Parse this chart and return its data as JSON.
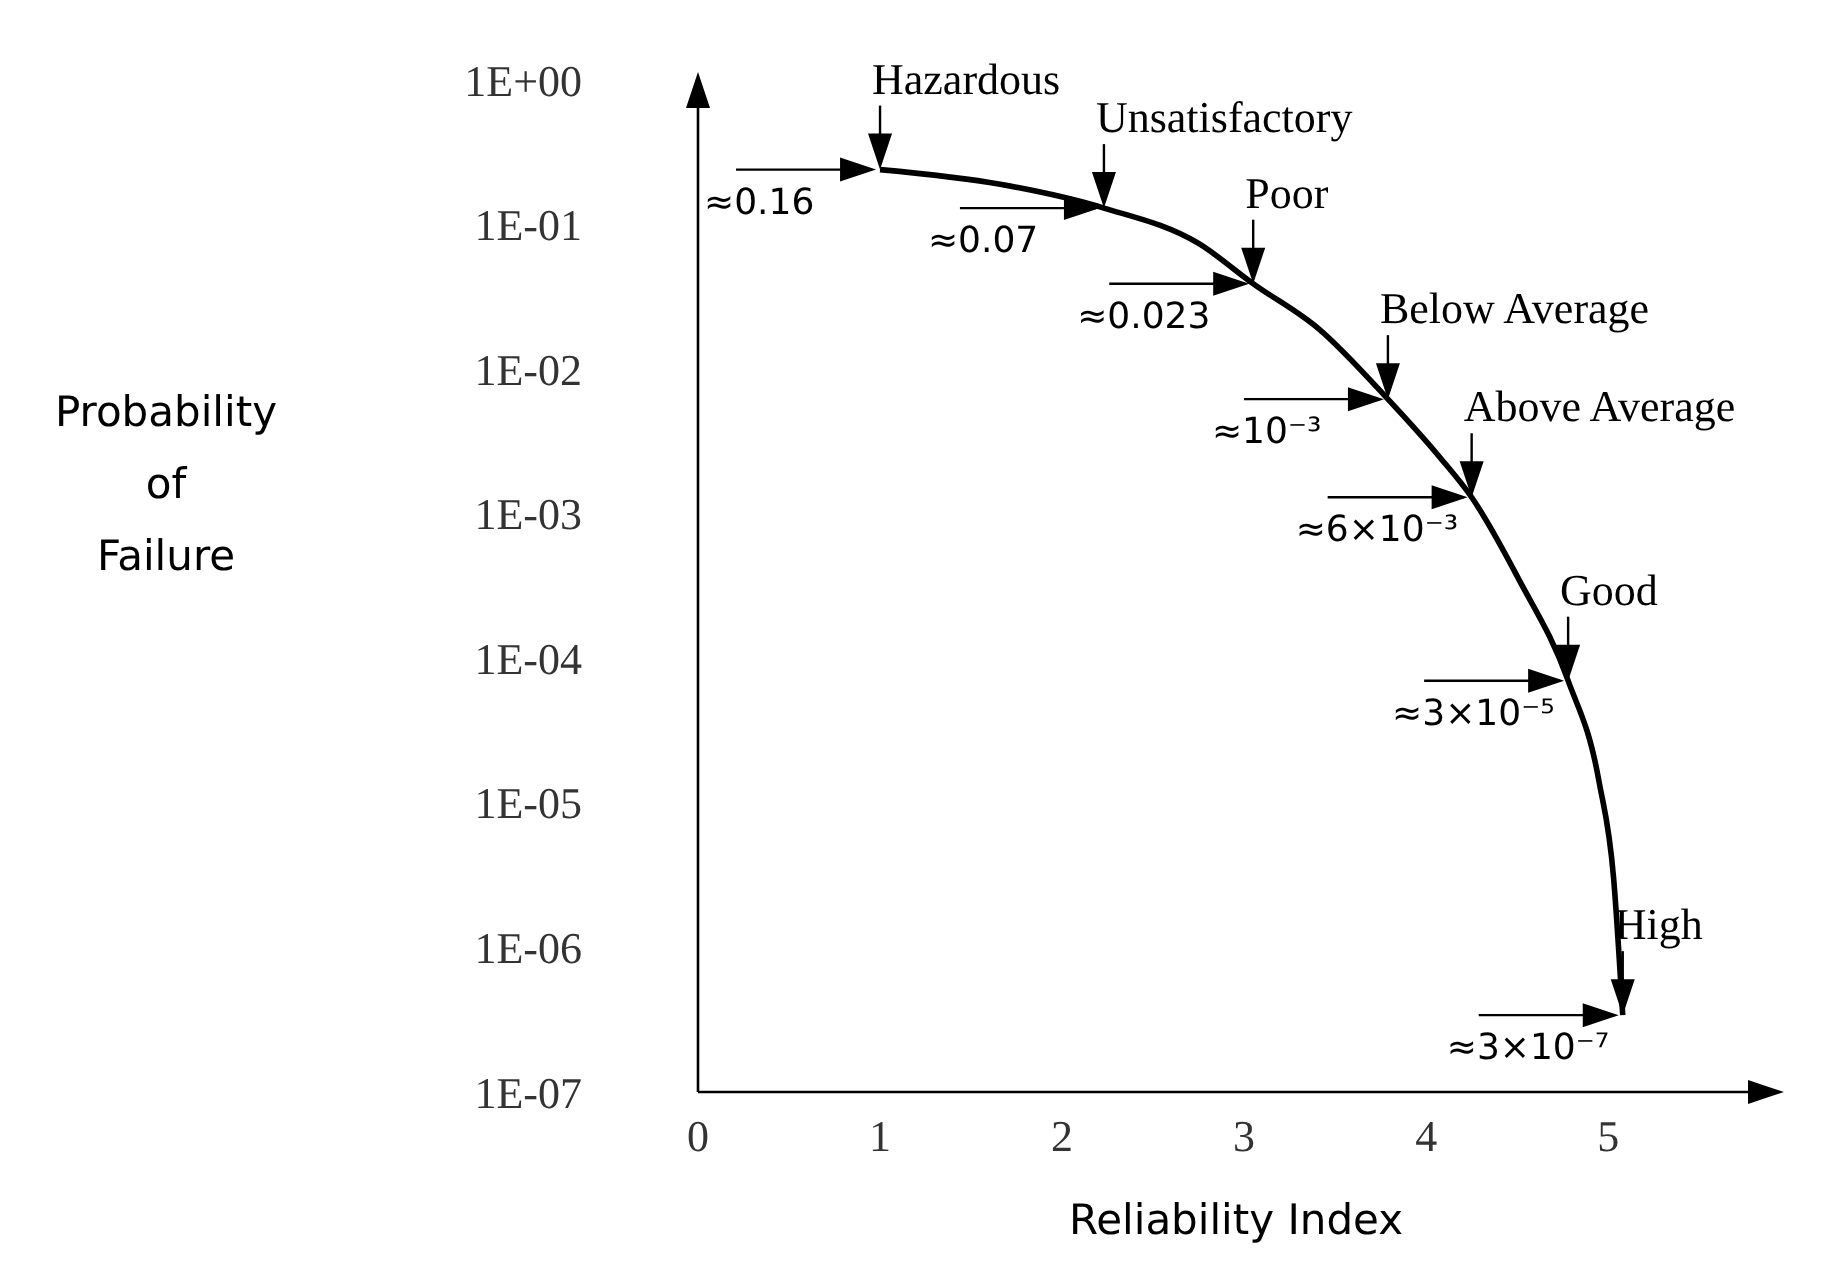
{
  "chart_data": {
    "type": "line",
    "xlabel": "Reliability Index",
    "ylabel": "Probability\nof\nFailure",
    "log": "y",
    "marker": "none",
    "xlim": [
      0,
      5.9
    ],
    "xticks": [
      0,
      1,
      2,
      3,
      4,
      5
    ],
    "ylim": [
      1e-07,
      1
    ],
    "yticks": [
      {
        "value": 1,
        "label": "1E+00"
      },
      {
        "value": 0.1,
        "label": "1E-01"
      },
      {
        "value": 0.01,
        "label": "1E-02"
      },
      {
        "value": 0.001,
        "label": "1E-03"
      },
      {
        "value": 0.0001,
        "label": "1E-04"
      },
      {
        "value": 1e-05,
        "label": "1E-05"
      },
      {
        "value": 1e-06,
        "label": "1E-06"
      },
      {
        "value": 1e-07,
        "label": "1E-07"
      }
    ],
    "series": [
      {
        "color": "#000000",
        "x": [
          1.0,
          1.66,
          2.23,
          2.75,
          3.05,
          3.41,
          3.79,
          4.07,
          4.25,
          4.51,
          4.78,
          4.95,
          5.03,
          5.08
        ],
        "values": [
          0.24,
          0.19,
          0.13,
          0.074,
          0.039,
          0.019,
          0.0062,
          0.0025,
          0.0013,
          0.00035,
          7e-05,
          1.4e-05,
          3e-06,
          3.4e-07
        ]
      }
    ],
    "annotations": [
      {
        "text": "Hazardous",
        "x": 1.0,
        "y": 0.24
      },
      {
        "text": "≈0.16",
        "x": 1.0,
        "y": 0.24
      },
      {
        "text": "Unsatisfactory",
        "x": 2.23,
        "y": 0.13
      },
      {
        "text": "≈0.07",
        "x": 2.23,
        "y": 0.13
      },
      {
        "text": "Poor",
        "x": 3.05,
        "y": 0.039
      },
      {
        "text": "≈0.023",
        "x": 3.05,
        "y": 0.039
      },
      {
        "text": "Below Average",
        "x": 3.79,
        "y": 0.0062
      },
      {
        "text": "≈10⁻³",
        "x": 3.79,
        "y": 0.0062
      },
      {
        "text": "Above Average",
        "x": 4.25,
        "y": 0.0013
      },
      {
        "text": "≈6×10⁻³",
        "x": 4.25,
        "y": 0.0013
      },
      {
        "text": "Good",
        "x": 4.78,
        "y": 7e-05
      },
      {
        "text": "≈3×10⁻⁵",
        "x": 4.78,
        "y": 7e-05
      },
      {
        "text": "High",
        "x": 5.08,
        "y": 3.4e-07
      },
      {
        "text": "≈3×10⁻⁷",
        "x": 5.08,
        "y": 3.4e-07
      }
    ]
  }
}
